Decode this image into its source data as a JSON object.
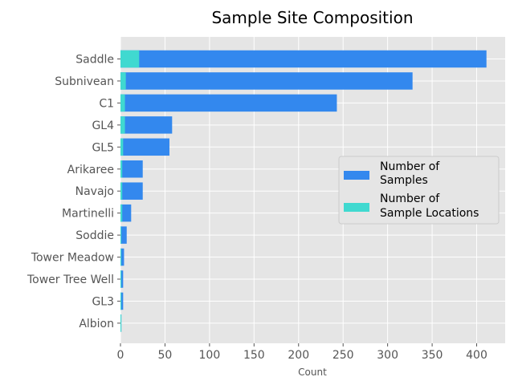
{
  "chart_data": {
    "type": "bar",
    "orientation": "horizontal",
    "stacked": "overlay",
    "title": "Sample Site Composition",
    "xlabel": "Count",
    "ylabel": "",
    "xlim": [
      0,
      432
    ],
    "xticks": [
      0,
      50,
      100,
      150,
      200,
      250,
      300,
      350,
      400
    ],
    "grid": true,
    "legend_position": "center-right",
    "categories": [
      "Saddle",
      "Subnivean",
      "C1",
      "GL4",
      "GL5",
      "Arikaree",
      "Navajo",
      "Martinelli",
      "Soddie",
      "Tower Meadow",
      "Tower Tree Well",
      "GL3",
      "Albion"
    ],
    "series": [
      {
        "name": "Number of\nSamples",
        "color": "#3388ee",
        "values": [
          411,
          328,
          243,
          58,
          55,
          25,
          25,
          12,
          7,
          4,
          3,
          3,
          1
        ]
      },
      {
        "name": "Number of\nSample Locations",
        "color": "#40d9d0",
        "values": [
          21,
          6,
          5,
          5,
          3,
          2,
          2,
          2,
          1,
          1,
          1,
          1,
          1
        ]
      }
    ]
  }
}
